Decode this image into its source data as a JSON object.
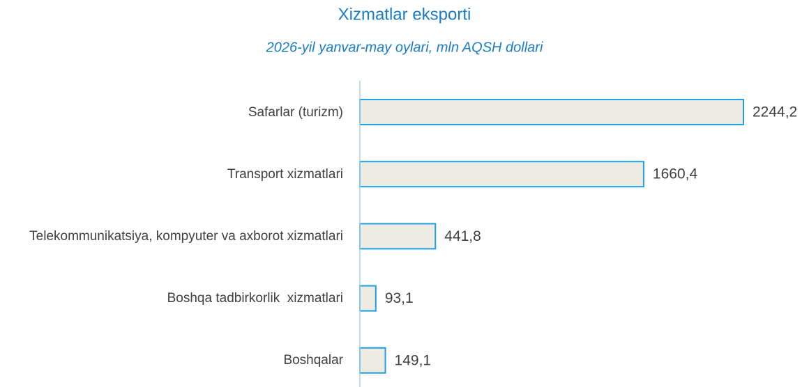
{
  "chart_data": {
    "type": "bar",
    "orientation": "horizontal",
    "title": "Xizmatlar eksporti",
    "subtitle": "2026-yil yanvar-may oylari, mln AQSH dollari",
    "categories": [
      "Safarlar (turizm)",
      "Transport xizmatlari",
      "Telekommunikatsiya, kompyuter va axborot xizmatlari",
      "Boshqa tadbirkorlik  xizmatlari",
      "Boshqalar"
    ],
    "values": [
      2244.2,
      1660.4,
      441.8,
      93.1,
      149.1
    ],
    "value_labels": [
      "2244,2",
      "1660,4",
      "441,8",
      "93,1",
      "149,1"
    ],
    "color": "#eeebe3",
    "edge_color": "#1ea0e2",
    "xlim": [
      0,
      2500
    ]
  }
}
